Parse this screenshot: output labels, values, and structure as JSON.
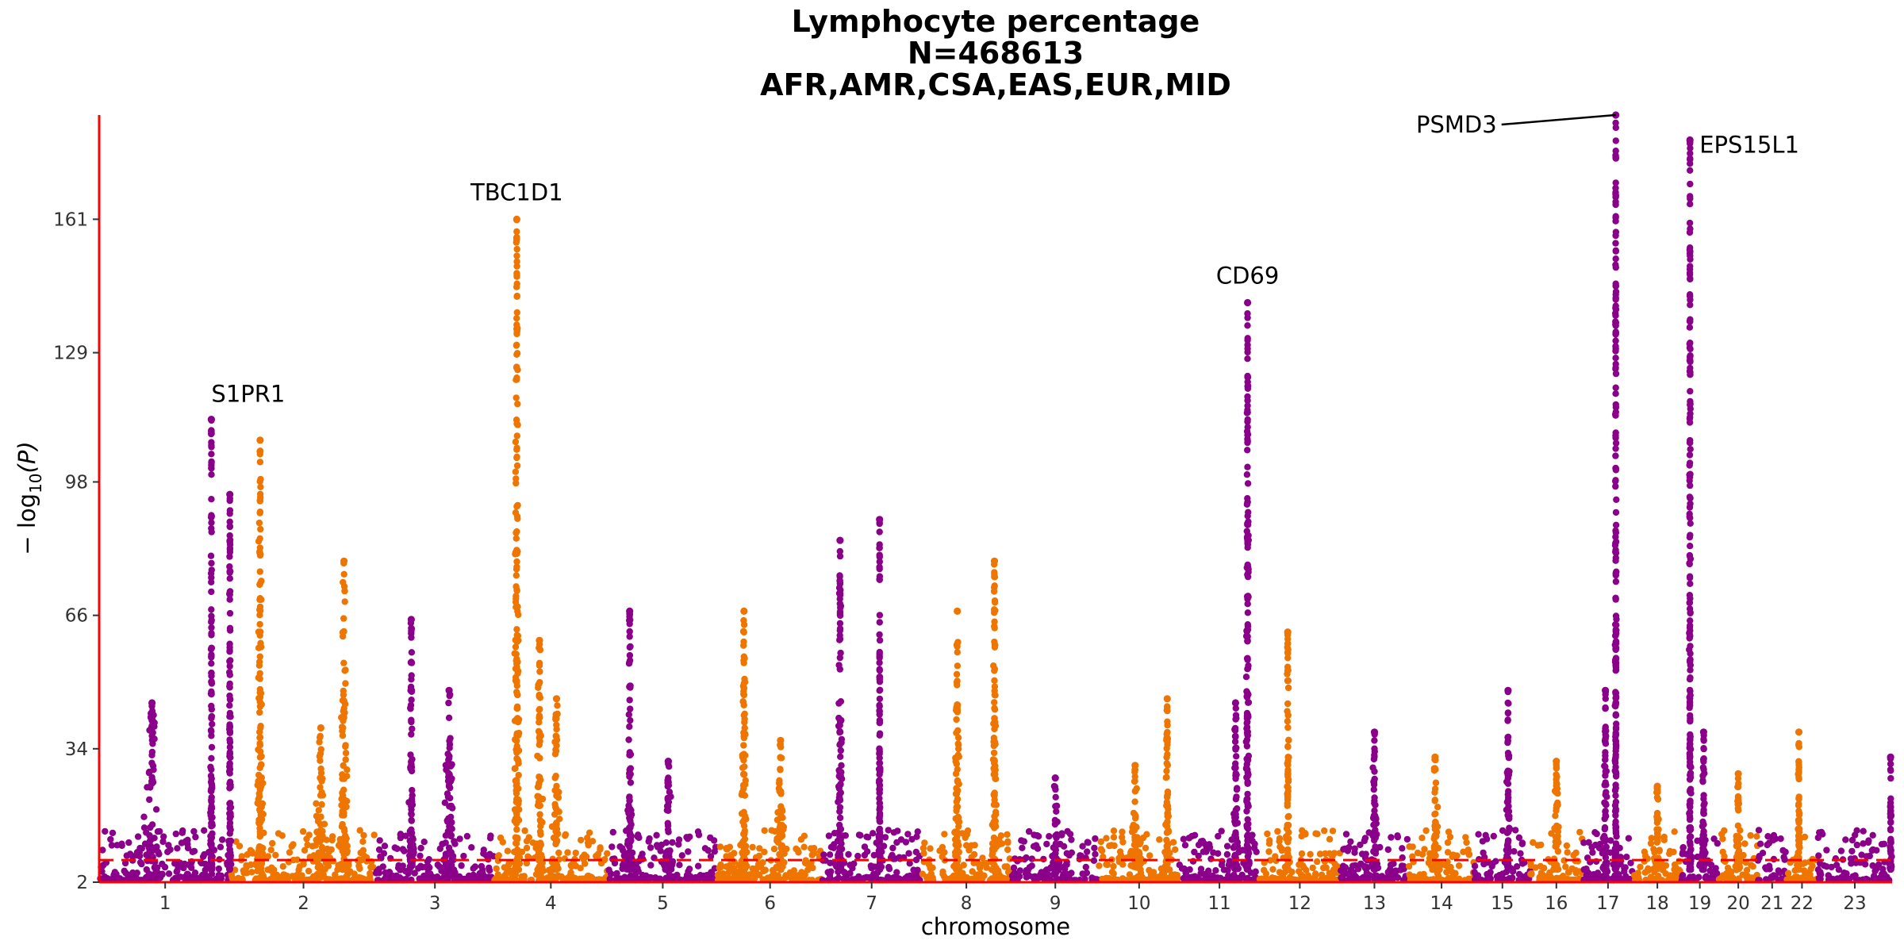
{
  "chart_data": {
    "type": "scatter",
    "subtype": "manhattan",
    "title_lines": [
      "Lymphocyte percentage",
      "N=468613",
      "AFR,AMR,CSA,EAS,EUR,MID"
    ],
    "xlabel": "chromosome",
    "ylabel_main": "− log",
    "ylabel_sub": "10",
    "ylabel_var": "(P)",
    "ylim": [
      2,
      186
    ],
    "y_ticks": [
      2,
      34,
      66,
      98,
      129,
      161
    ],
    "significance_threshold": 7.3,
    "colors": {
      "odd": "#8B008B",
      "even": "#EE7600",
      "axis": "#FF0000",
      "threshold": "#FF0000"
    },
    "chromosomes": [
      {
        "label": "1",
        "start": 0,
        "end": 1150,
        "tick": 575
      },
      {
        "label": "2",
        "start": 1150,
        "end": 2410,
        "tick": 1780
      },
      {
        "label": "3",
        "start": 2410,
        "end": 3440,
        "tick": 2925
      },
      {
        "label": "4",
        "start": 3440,
        "end": 4430,
        "tick": 3935
      },
      {
        "label": "5",
        "start": 4430,
        "end": 5390,
        "tick": 4910
      },
      {
        "label": "6",
        "start": 5390,
        "end": 6300,
        "tick": 5845
      },
      {
        "label": "7",
        "start": 6300,
        "end": 7160,
        "tick": 6730
      },
      {
        "label": "8",
        "start": 7160,
        "end": 7950,
        "tick": 7555
      },
      {
        "label": "9",
        "start": 7950,
        "end": 8710,
        "tick": 8330
      },
      {
        "label": "10",
        "start": 8710,
        "end": 9410,
        "tick": 9060
      },
      {
        "label": "11",
        "start": 9410,
        "end": 10110,
        "tick": 9760
      },
      {
        "label": "12",
        "start": 10110,
        "end": 10810,
        "tick": 10460
      },
      {
        "label": "13",
        "start": 10810,
        "end": 11410,
        "tick": 11110
      },
      {
        "label": "14",
        "start": 11410,
        "end": 11980,
        "tick": 11695
      },
      {
        "label": "15",
        "start": 11980,
        "end": 12470,
        "tick": 12225
      },
      {
        "label": "16",
        "start": 12470,
        "end": 12920,
        "tick": 12695
      },
      {
        "label": "17",
        "start": 12920,
        "end": 13370,
        "tick": 13145
      },
      {
        "label": "18",
        "start": 13370,
        "end": 13780,
        "tick": 13575
      },
      {
        "label": "19",
        "start": 13780,
        "end": 14110,
        "tick": 13945
      },
      {
        "label": "20",
        "start": 14110,
        "end": 14450,
        "tick": 14280
      },
      {
        "label": "21",
        "start": 14450,
        "end": 14700,
        "tick": 14575
      },
      {
        "label": "22",
        "start": 14700,
        "end": 14970,
        "tick": 14835
      },
      {
        "label": "23",
        "start": 14970,
        "end": 15620,
        "tick": 15295
      }
    ],
    "peaks": [
      {
        "chr": "1",
        "pos": 0.85,
        "p": 113,
        "width": 0.01
      },
      {
        "chr": "1",
        "pos": 0.99,
        "p": 95,
        "width": 0.01
      },
      {
        "chr": "1",
        "pos": 0.4,
        "p": 45,
        "width": 0.1
      },
      {
        "chr": "2",
        "pos": 0.2,
        "p": 108,
        "width": 0.03
      },
      {
        "chr": "2",
        "pos": 0.78,
        "p": 79,
        "width": 0.04
      },
      {
        "chr": "2",
        "pos": 0.62,
        "p": 39,
        "width": 0.06
      },
      {
        "chr": "3",
        "pos": 0.3,
        "p": 65,
        "width": 0.03
      },
      {
        "chr": "3",
        "pos": 0.62,
        "p": 48,
        "width": 0.06
      },
      {
        "chr": "4",
        "pos": 0.2,
        "p": 161,
        "width": 0.03
      },
      {
        "chr": "4",
        "pos": 0.4,
        "p": 60,
        "width": 0.04
      },
      {
        "chr": "4",
        "pos": 0.55,
        "p": 46,
        "width": 0.05
      },
      {
        "chr": "5",
        "pos": 0.2,
        "p": 67,
        "width": 0.03
      },
      {
        "chr": "5",
        "pos": 0.55,
        "p": 31,
        "width": 0.06
      },
      {
        "chr": "6",
        "pos": 0.25,
        "p": 67,
        "width": 0.04
      },
      {
        "chr": "6",
        "pos": 0.6,
        "p": 36,
        "width": 0.05
      },
      {
        "chr": "7",
        "pos": 0.18,
        "p": 84,
        "width": 0.03
      },
      {
        "chr": "7",
        "pos": 0.58,
        "p": 89,
        "width": 0.01
      },
      {
        "chr": "8",
        "pos": 0.4,
        "p": 67,
        "width": 0.04
      },
      {
        "chr": "8",
        "pos": 0.81,
        "p": 79,
        "width": 0.03
      },
      {
        "chr": "9",
        "pos": 0.5,
        "p": 27,
        "width": 0.08
      },
      {
        "chr": "10",
        "pos": 0.45,
        "p": 30,
        "width": 0.08
      },
      {
        "chr": "10",
        "pos": 0.85,
        "p": 46,
        "width": 0.04
      },
      {
        "chr": "11",
        "pos": 0.85,
        "p": 141,
        "width": 0.03
      },
      {
        "chr": "11",
        "pos": 0.7,
        "p": 45,
        "width": 0.05
      },
      {
        "chr": "12",
        "pos": 0.35,
        "p": 62,
        "width": 0.04
      },
      {
        "chr": "13",
        "pos": 0.5,
        "p": 38,
        "width": 0.06
      },
      {
        "chr": "14",
        "pos": 0.4,
        "p": 32,
        "width": 0.08
      },
      {
        "chr": "15",
        "pos": 0.6,
        "p": 48,
        "width": 0.05
      },
      {
        "chr": "16",
        "pos": 0.5,
        "p": 31,
        "width": 0.08
      },
      {
        "chr": "17",
        "pos": 0.65,
        "p": 192,
        "width": 0.02
      },
      {
        "chr": "17",
        "pos": 0.45,
        "p": 48,
        "width": 0.05
      },
      {
        "chr": "18",
        "pos": 0.5,
        "p": 25,
        "width": 0.08
      },
      {
        "chr": "19",
        "pos": 0.24,
        "p": 180,
        "width": 0.03
      },
      {
        "chr": "19",
        "pos": 0.6,
        "p": 38,
        "width": 0.06
      },
      {
        "chr": "20",
        "pos": 0.5,
        "p": 28,
        "width": 0.08
      },
      {
        "chr": "22",
        "pos": 0.4,
        "p": 38,
        "width": 0.06
      },
      {
        "chr": "23",
        "pos": 0.98,
        "p": 32,
        "width": 0.02
      }
    ],
    "annotations": [
      {
        "gene": "S1PR1",
        "chr": "1",
        "pos": 0.85,
        "p": 113,
        "anchor": "start",
        "label_dx": 0,
        "label_dy": -22
      },
      {
        "gene": "TBC1D1",
        "chr": "4",
        "pos": 0.2,
        "p": 161,
        "anchor": "middle",
        "label_dx": 0,
        "label_dy": -24
      },
      {
        "gene": "CD69",
        "chr": "11",
        "pos": 0.85,
        "p": 141,
        "anchor": "middle",
        "label_dx": 0,
        "label_dy": -24
      },
      {
        "gene": "PSMD3",
        "chr": "17",
        "pos": 0.65,
        "p": 192,
        "anchor": "end",
        "label_dx": -150,
        "label_dy": 22,
        "leader": true
      },
      {
        "gene": "EPS15L1",
        "chr": "19",
        "pos": 0.24,
        "p": 180,
        "anchor": "start",
        "label_dx": 12,
        "label_dy": 16
      }
    ]
  }
}
